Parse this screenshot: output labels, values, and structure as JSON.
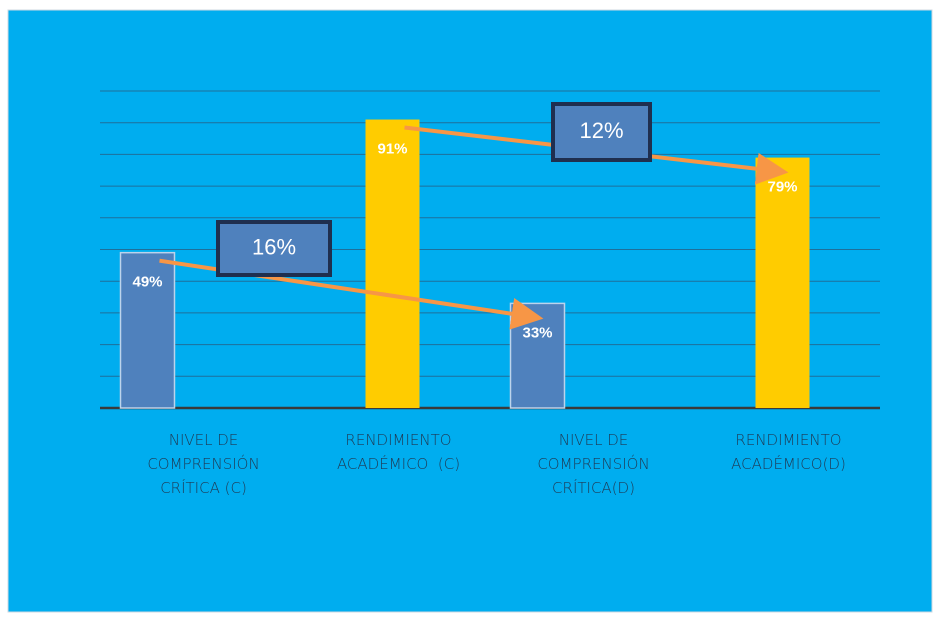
{
  "chart_data": {
    "type": "bar",
    "categories": [
      "NIVEL DE COMPRENSIÓN CRÍTICA (C)",
      "RENDIMIENTO ACADÉMICO  (C)",
      "NIVEL DE COMPRENSIÓN CRÍTICA(D)",
      "RENDIMIENTO ACADÉMICO(D)"
    ],
    "values": [
      49,
      91,
      33,
      79
    ],
    "value_labels": [
      "49%",
      "91%",
      "33%",
      "79%"
    ],
    "colors": [
      "#4f81bd",
      "#ffcc00",
      "#4f81bd",
      "#ffcc00"
    ],
    "background": "#00adef",
    "ylim": [
      0,
      100
    ],
    "yticks": [
      0,
      10,
      20,
      30,
      40,
      50,
      60,
      70,
      80,
      90,
      100
    ],
    "grid": true,
    "annotations": [
      "16%",
      "12%"
    ]
  }
}
